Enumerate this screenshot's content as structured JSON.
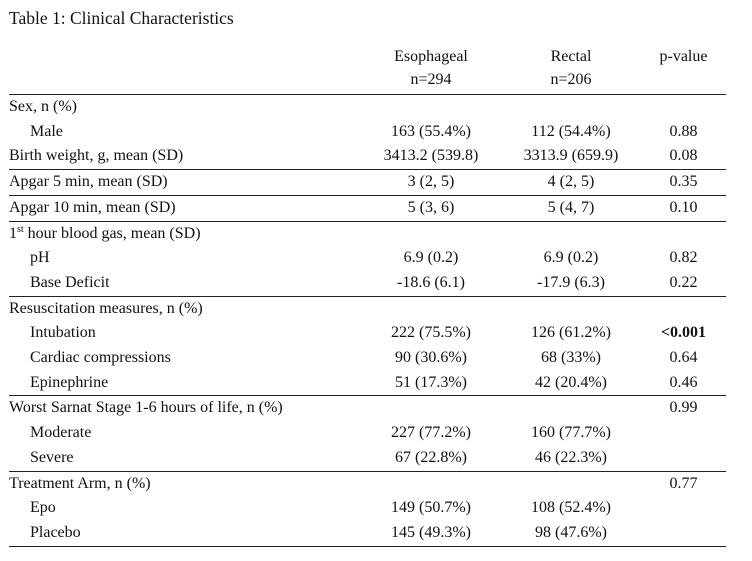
{
  "caption": "Table 1: Clinical Characteristics",
  "header": {
    "col_esophageal": "Esophageal",
    "col_esophageal_n": "n=294",
    "col_rectal": "Rectal",
    "col_rectal_n": "n=206",
    "col_pvalue": "p-value"
  },
  "rows": {
    "sex": {
      "label": "Sex, n (%)"
    },
    "male": {
      "label": "Male",
      "esophageal": "163 (55.4%)",
      "rectal": "112 (54.4%)",
      "p": "0.88"
    },
    "birth_weight": {
      "label": "Birth weight, g, mean (SD)",
      "esophageal": "3413.2 (539.8)",
      "rectal": "3313.9 (659.9)",
      "p": "0.08"
    },
    "apgar5": {
      "label": "Apgar 5 min, mean (SD)",
      "esophageal": "3 (2, 5)",
      "rectal": "4 (2, 5)",
      "p": "0.35"
    },
    "apgar10": {
      "label": "Apgar 10 min, mean (SD)",
      "esophageal": "5 (3, 6)",
      "rectal": "5 (4, 7)",
      "p": "0.10"
    },
    "blood_gas": {
      "label_prefix": "1",
      "label_sup": "st",
      "label_rest": " hour blood gas, mean (SD)"
    },
    "ph": {
      "label": "pH",
      "esophageal": "6.9 (0.2)",
      "rectal": "6.9 (0.2)",
      "p": "0.82"
    },
    "base_deficit": {
      "label": "Base Deficit",
      "esophageal": "-18.6 (6.1)",
      "rectal": "-17.9 (6.3)",
      "p": "0.22"
    },
    "resus": {
      "label": "Resuscitation measures, n (%)"
    },
    "intubation": {
      "label": "Intubation",
      "esophageal": "222 (75.5%)",
      "rectal": "126 (61.2%)",
      "p": "<0.001"
    },
    "cardiac": {
      "label": "Cardiac compressions",
      "esophageal": "90 (30.6%)",
      "rectal": "68 (33%)",
      "p": "0.64"
    },
    "epinephrine": {
      "label": "Epinephrine",
      "esophageal": "51 (17.3%)",
      "rectal": "42 (20.4%)",
      "p": "0.46"
    },
    "sarnat": {
      "label": "Worst Sarnat Stage 1-6 hours of life, n (%)",
      "p": "0.99"
    },
    "moderate": {
      "label": "Moderate",
      "esophageal": "227 (77.2%)",
      "rectal": "160 (77.7%)"
    },
    "severe": {
      "label": "Severe",
      "esophageal": "67 (22.8%)",
      "rectal": "46 (22.3%)"
    },
    "treatment": {
      "label": "Treatment Arm, n (%)",
      "p": "0.77"
    },
    "epo": {
      "label": "Epo",
      "esophageal": "149 (50.7%)",
      "rectal": "108 (52.4%)"
    },
    "placebo": {
      "label": "Placebo",
      "esophageal": "145 (49.3%)",
      "rectal": "98 (47.6%)"
    }
  }
}
